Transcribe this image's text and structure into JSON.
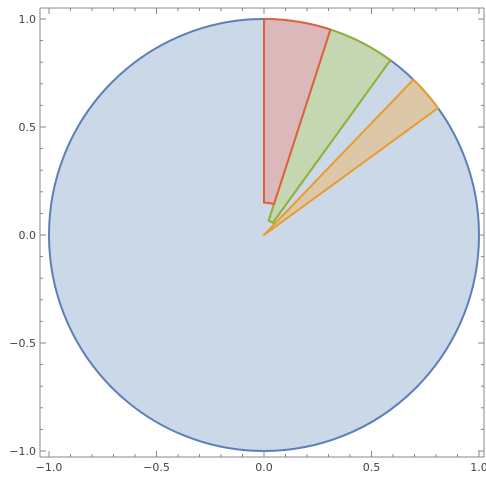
{
  "chart_data": {
    "type": "area",
    "title": "",
    "xlabel": "",
    "ylabel": "",
    "xlim": [
      -1.0,
      1.0
    ],
    "ylim": [
      -1.0,
      1.0
    ],
    "grid": false,
    "legend": "none",
    "x_ticks": [
      {
        "value": -1.0,
        "label": "−1.0"
      },
      {
        "value": -0.5,
        "label": "−0.5"
      },
      {
        "value": 0.0,
        "label": "0.0"
      },
      {
        "value": 0.5,
        "label": "0.5"
      },
      {
        "value": 1.0,
        "label": "1.0"
      }
    ],
    "y_ticks": [
      {
        "value": 1.0,
        "label": "1.0"
      },
      {
        "value": 0.5,
        "label": "0.5"
      },
      {
        "value": 0.0,
        "label": "0.0"
      },
      {
        "value": -0.5,
        "label": "−0.5"
      },
      {
        "value": -1.0,
        "label": "−1.0"
      }
    ],
    "shapes": [
      {
        "kind": "disk",
        "center": [
          0.0,
          0.0
        ],
        "radius": 1.0,
        "fill": "#cbd8e8",
        "stroke": "#5b80b8"
      },
      {
        "kind": "annular-sector",
        "center": [
          0.0,
          0.0
        ],
        "inner_radius": 0.0,
        "outer_radius": 1.0,
        "angle_start_deg": 36,
        "angle_end_deg": 46,
        "fill": "#dcc8a8",
        "stroke": "#e89c2c"
      },
      {
        "kind": "annular-sector",
        "center": [
          0.0,
          0.0
        ],
        "inner_radius": 0.07,
        "outer_radius": 1.0,
        "angle_start_deg": 54,
        "angle_end_deg": 72,
        "fill": "#c5d6b2",
        "stroke": "#8fb032"
      },
      {
        "kind": "annular-sector",
        "center": [
          0.0,
          0.0
        ],
        "inner_radius": 0.15,
        "outer_radius": 1.0,
        "angle_start_deg": 72,
        "angle_end_deg": 90,
        "fill": "#dbb9bb",
        "stroke": "#e0603c"
      }
    ]
  }
}
